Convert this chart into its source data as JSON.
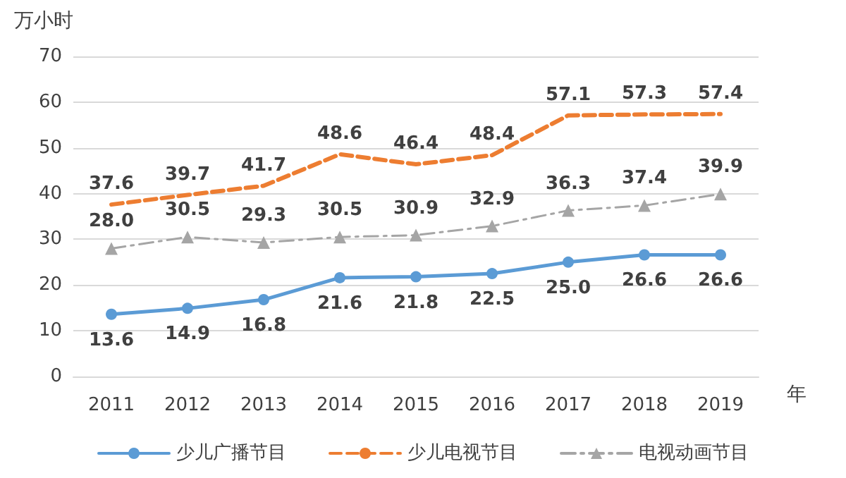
{
  "chart_data": {
    "type": "line",
    "ylabel": "万小时",
    "xlabel": "年",
    "categories": [
      "2011",
      "2012",
      "2013",
      "2014",
      "2015",
      "2016",
      "2017",
      "2018",
      "2019"
    ],
    "series": [
      {
        "name": "少儿广播节目",
        "color": "#5b9bd5",
        "marker": "circle",
        "line_style": "solid",
        "values": [
          13.6,
          14.9,
          16.8,
          21.6,
          21.8,
          22.5,
          25.0,
          26.6,
          26.6
        ],
        "value_labels": [
          "13.6",
          "14.9",
          "16.8",
          "21.6",
          "21.8",
          "22.5",
          "25.0",
          "26.6",
          "26.6"
        ]
      },
      {
        "name": "少儿电视节目",
        "color": "#ed7d31",
        "marker": "none",
        "line_style": "dashed",
        "values": [
          37.6,
          39.7,
          41.7,
          48.6,
          46.4,
          48.4,
          57.1,
          57.3,
          57.4
        ],
        "value_labels": [
          "37.6",
          "39.7",
          "41.7",
          "48.6",
          "46.4",
          "48.4",
          "57.1",
          "57.3",
          "57.4"
        ]
      },
      {
        "name": "电视动画节目",
        "color": "#a5a5a5",
        "marker": "triangle",
        "line_style": "dashdot",
        "values": [
          28.0,
          30.5,
          29.3,
          30.5,
          30.9,
          32.9,
          36.3,
          37.4,
          39.9
        ],
        "value_labels": [
          "28.0",
          "30.5",
          "29.3",
          "30.5",
          "30.9",
          "32.9",
          "36.3",
          "37.4",
          "39.9"
        ]
      }
    ],
    "ylim": [
      0,
      70
    ],
    "yticks": [
      0,
      10,
      20,
      30,
      40,
      50,
      60,
      70
    ],
    "grid": "y",
    "legend": "bottom"
  }
}
